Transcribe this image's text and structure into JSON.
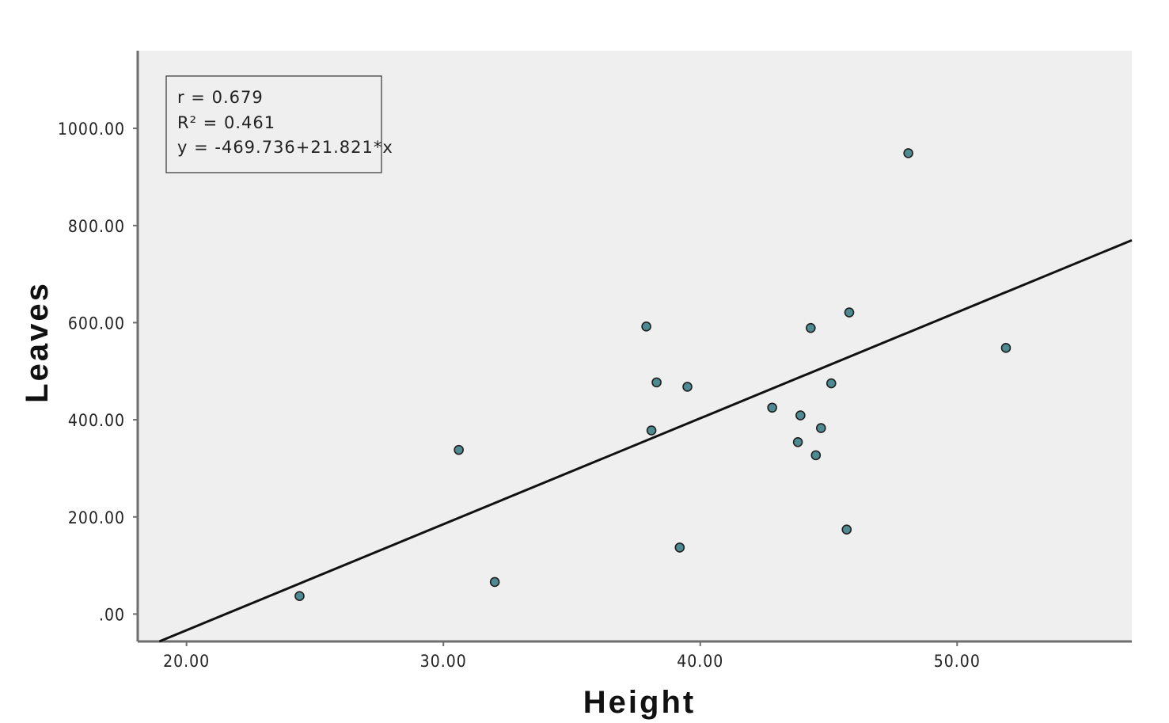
{
  "chart_data": {
    "type": "scatter",
    "xlabel": "Height",
    "ylabel": "Leaves",
    "xlim": [
      18.1,
      56.8
    ],
    "ylim": [
      -56.4,
      1160
    ],
    "x_ticks": [
      "20.00",
      "30.00",
      "40.00",
      "50.00"
    ],
    "y_ticks": [
      ".00",
      "200.00",
      "400.00",
      "600.00",
      "800.00",
      "1000.00"
    ],
    "grid": false,
    "legend": "none",
    "stats": {
      "r_label": "r = 0.679",
      "r2_label": "R² = 0.461",
      "equation_label": "y = -469.736+21.821*x"
    },
    "fit_line": {
      "intercept": -469.736,
      "slope": 21.821
    },
    "points": [
      {
        "x": 24.4,
        "y": 37
      },
      {
        "x": 30.6,
        "y": 338
      },
      {
        "x": 32.0,
        "y": 66
      },
      {
        "x": 37.9,
        "y": 592
      },
      {
        "x": 38.1,
        "y": 378
      },
      {
        "x": 38.3,
        "y": 477
      },
      {
        "x": 39.2,
        "y": 137
      },
      {
        "x": 39.5,
        "y": 468
      },
      {
        "x": 42.8,
        "y": 425
      },
      {
        "x": 43.8,
        "y": 354
      },
      {
        "x": 43.9,
        "y": 409
      },
      {
        "x": 44.3,
        "y": 589
      },
      {
        "x": 44.5,
        "y": 327
      },
      {
        "x": 44.7,
        "y": 383
      },
      {
        "x": 45.1,
        "y": 475
      },
      {
        "x": 45.7,
        "y": 174
      },
      {
        "x": 45.8,
        "y": 621
      },
      {
        "x": 48.1,
        "y": 949
      },
      {
        "x": 51.9,
        "y": 548
      }
    ],
    "colors": {
      "plot_background": "#efefef",
      "marker_fill": "#4e8a92",
      "marker_stroke": "#1f1f1f",
      "fit_line": "#111111",
      "axis": "#6e6e6e"
    }
  }
}
